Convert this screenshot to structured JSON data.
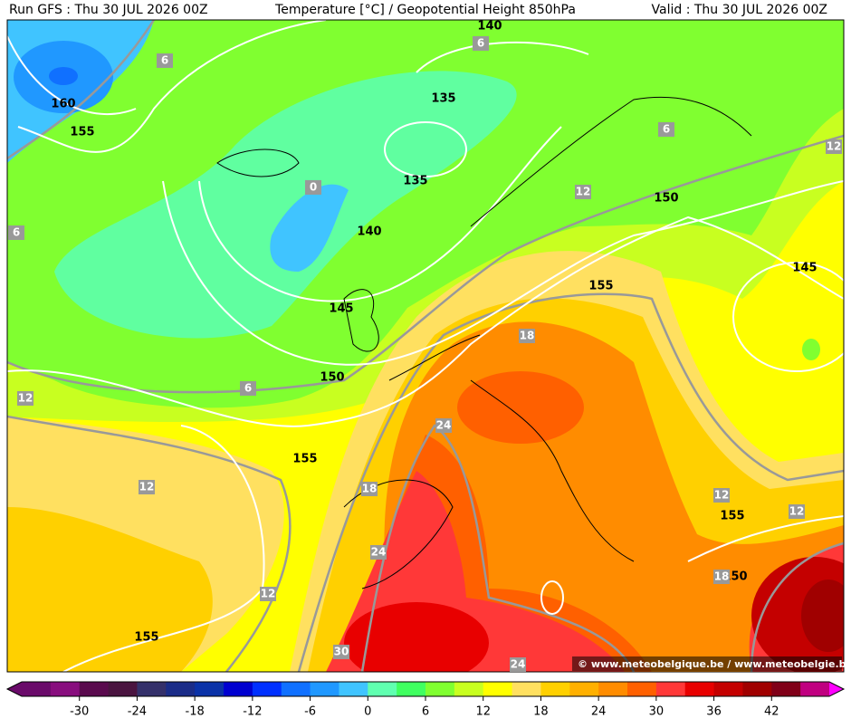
{
  "header": {
    "run": "Run GFS : Thu 30 JUL 2026 00Z",
    "title": "Temperature [°C] / Geopotential Height 850hPa",
    "valid": "Valid : Thu 30 JUL 2026 00Z"
  },
  "map": {
    "height_labels": [
      160,
      155,
      140,
      135,
      135,
      140,
      145,
      150,
      155,
      155,
      155,
      150,
      145,
      155,
      150
    ],
    "temperature_labels": [
      6,
      6,
      6,
      0,
      6,
      12,
      12,
      18,
      6,
      12,
      24,
      12,
      18,
      24,
      12,
      18,
      12,
      12,
      30,
      24
    ]
  },
  "colorbar": {
    "range": [
      -36,
      48
    ],
    "ticks": [
      -30,
      -24,
      -18,
      -12,
      -6,
      0,
      6,
      12,
      18,
      24,
      30,
      36,
      42
    ],
    "colors": [
      "#6a0a6a",
      "#880e7e",
      "#5a0a4e",
      "#4a1440",
      "#34306a",
      "#1a2c88",
      "#0a32a8",
      "#0000d0",
      "#0030ff",
      "#1070ff",
      "#2098ff",
      "#40c4ff",
      "#60ffb0",
      "#40ff60",
      "#80ff30",
      "#c8ff20",
      "#ffff00",
      "#ffe060",
      "#ffd000",
      "#ffb000",
      "#ff8c00",
      "#ff6000",
      "#ff3838",
      "#e80000",
      "#c40000",
      "#a00000",
      "#800018",
      "#c00080"
    ]
  },
  "credit": "© www.meteobelgique.be / www.meteobelgie.be"
}
